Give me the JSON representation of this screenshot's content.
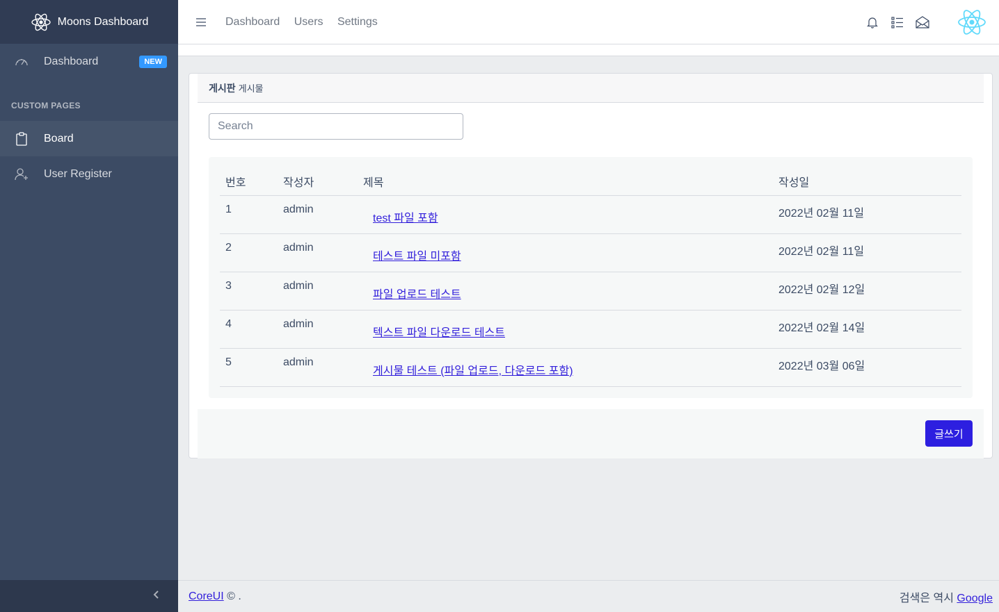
{
  "sidebar": {
    "brand": "Moons Dashboard",
    "dashboard": {
      "label": "Dashboard",
      "badge": "NEW",
      "icon": "speedometer-icon"
    },
    "section_title": "CUSTOM PAGES",
    "items": [
      {
        "label": "Board",
        "icon": "clipboard-icon",
        "active": true
      },
      {
        "label": "User Register",
        "icon": "user-plus-icon",
        "active": false
      }
    ],
    "toggler_icon": "chevron-left-icon"
  },
  "header": {
    "nav": [
      "Dashboard",
      "Users",
      "Settings"
    ],
    "icons": [
      "bell-icon",
      "list-icon",
      "envelope-open-icon"
    ],
    "avatar_icon": "react-logo-icon"
  },
  "card": {
    "title": "게시판",
    "subtitle": "게시물",
    "search_placeholder": "Search",
    "columns": [
      "번호",
      "작성자",
      "제목",
      "작성일"
    ],
    "rows": [
      {
        "no": "1",
        "author": "admin",
        "title": "test 파일 포함",
        "date": "2022년 02월 11일"
      },
      {
        "no": "2",
        "author": "admin",
        "title": "테스트 파일 미포함",
        "date": "2022년 02월 11일"
      },
      {
        "no": "3",
        "author": "admin",
        "title": "파일 업로드 테스트",
        "date": "2022년 02월 12일"
      },
      {
        "no": "4",
        "author": "admin",
        "title": "텍스트 파일 다운로드 테스트",
        "date": "2022년 02월 14일"
      },
      {
        "no": "5",
        "author": "admin",
        "title": "게시물 테스트 (파일 업로드, 다운로드 포함)",
        "date": "2022년 03월 06일"
      }
    ],
    "write_button": "글쓰기"
  },
  "footer": {
    "link": "CoreUI",
    "copyright": "© .",
    "right_text": "검색은 역시",
    "right_link": "Google"
  },
  "colors": {
    "sidebar": "#3c4b64",
    "brand_bg": "#303c54",
    "accent": "#321fdb",
    "badge": "#3399ff",
    "react": "#61dafb"
  }
}
